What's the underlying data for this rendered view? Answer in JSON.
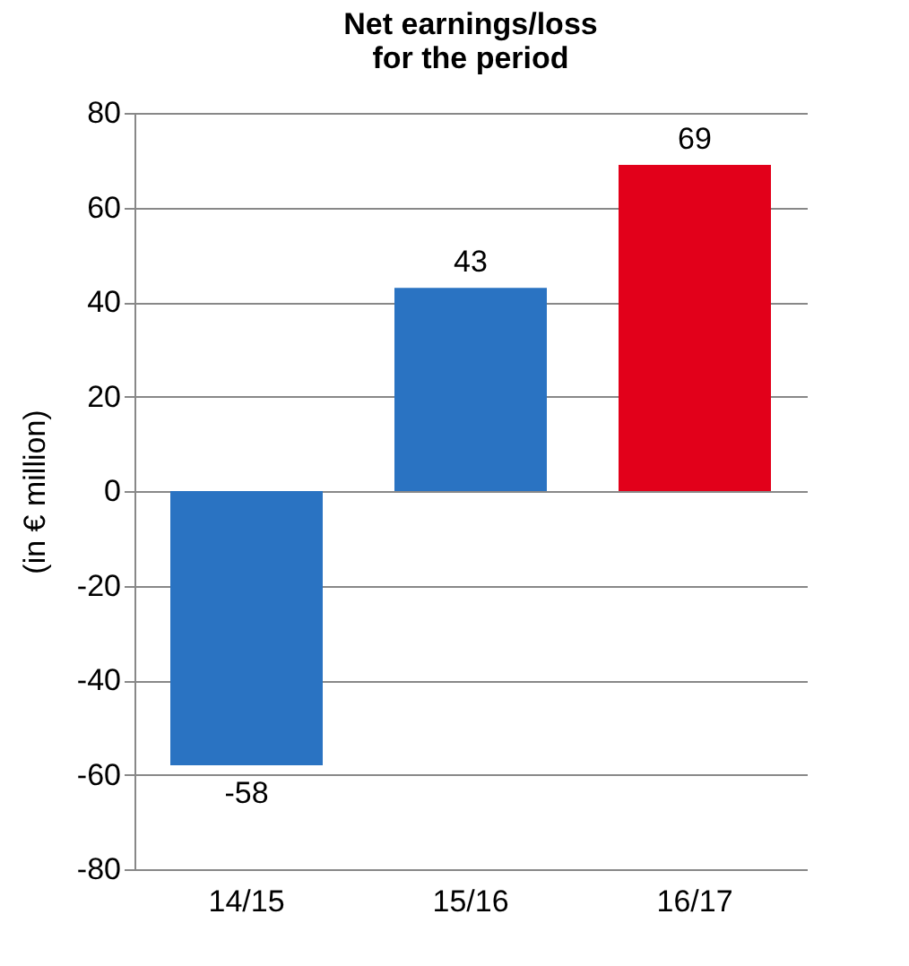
{
  "chart_data": {
    "type": "bar",
    "title": "Net earnings/loss\nfor the period",
    "ylabel": "(in € million)",
    "categories": [
      "14/15",
      "15/16",
      "16/17"
    ],
    "values": [
      -58,
      43,
      69
    ],
    "colors": [
      "#2a73c2",
      "#2a73c2",
      "#e2001a"
    ],
    "ylim": [
      -80,
      80
    ],
    "yticks": [
      -80,
      -60,
      -40,
      -20,
      0,
      20,
      40,
      60,
      80
    ],
    "grid": "y",
    "data_labels": true
  }
}
